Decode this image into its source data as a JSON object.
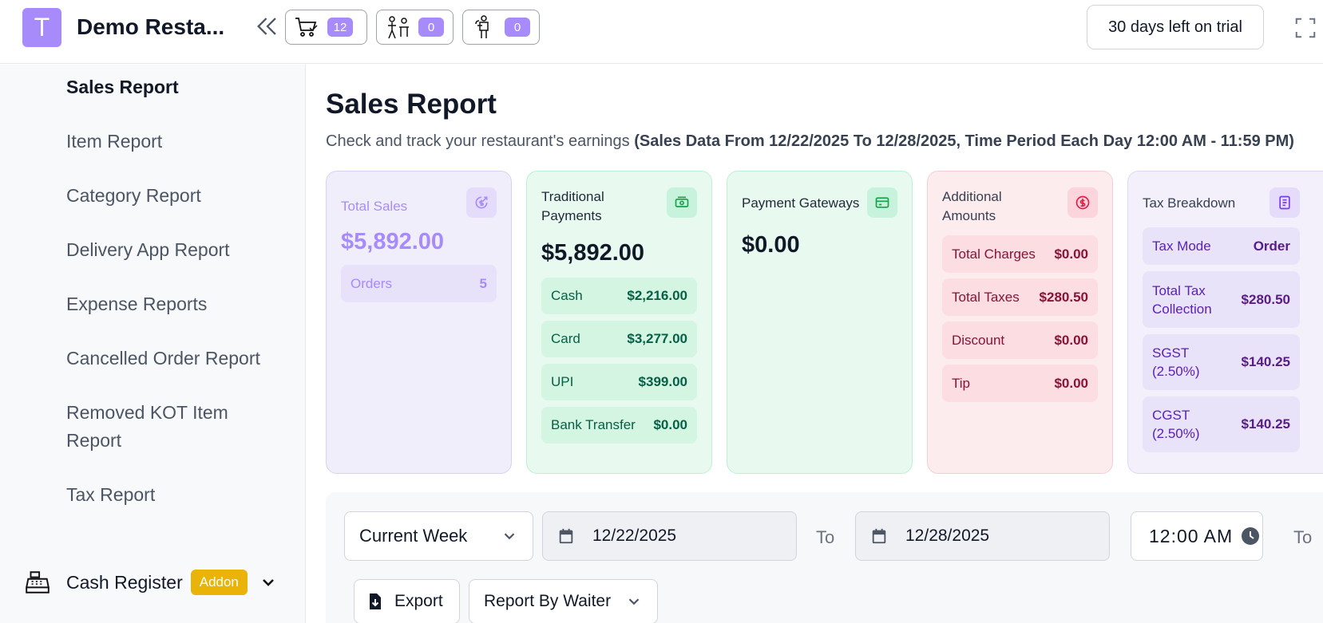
{
  "header": {
    "logo_letter": "T",
    "brand": "Demo Resta...",
    "badges": [
      {
        "icon": "shopping-cart-icon",
        "count": "12"
      },
      {
        "icon": "table-service-icon",
        "count": "0"
      },
      {
        "icon": "waiter-icon",
        "count": "0"
      }
    ],
    "trial_label": "30 days left on trial"
  },
  "sidebar": {
    "items": [
      {
        "label": "Sales Report",
        "active": true
      },
      {
        "label": "Item Report"
      },
      {
        "label": "Category Report"
      },
      {
        "label": "Delivery App Report"
      },
      {
        "label": "Expense Reports"
      },
      {
        "label": "Cancelled Order Report"
      },
      {
        "label": "Removed KOT Item"
      },
      {
        "label": "Report"
      },
      {
        "label": "Tax Report"
      }
    ],
    "cash_register": {
      "label": "Cash Register",
      "badge": "Addon"
    }
  },
  "main": {
    "title": "Sales Report",
    "subtitle_prefix": "Check and track your restaurant's earnings ",
    "subtitle_bold": "(Sales Data From 12/22/2025 To 12/28/2025, Time Period Each Day 12:00 AM - 11:59 PM)"
  },
  "cards": {
    "total_sales": {
      "title": "Total Sales",
      "amount": "$5,892.00",
      "rows": [
        {
          "label": "Orders",
          "value": "5"
        }
      ]
    },
    "traditional": {
      "title": "Traditional Payments",
      "amount": "$5,892.00",
      "rows": [
        {
          "label": "Cash",
          "value": "$2,216.00"
        },
        {
          "label": "Card",
          "value": "$3,277.00"
        },
        {
          "label": "UPI",
          "value": "$399.00"
        },
        {
          "label": "Bank Transfer",
          "value": "$0.00"
        }
      ]
    },
    "gateways": {
      "title": "Payment Gateways",
      "amount": "$0.00"
    },
    "additional": {
      "title": "Additional Amounts",
      "rows": [
        {
          "label": "Total Charges",
          "value": "$0.00"
        },
        {
          "label": "Total Taxes",
          "value": "$280.50"
        },
        {
          "label": "Discount",
          "value": "$0.00"
        },
        {
          "label": "Tip",
          "value": "$0.00"
        }
      ]
    },
    "tax": {
      "title": "Tax Breakdown",
      "rows": [
        {
          "label": "Tax Mode",
          "value": "Order"
        },
        {
          "label": "Total Tax Collection",
          "value": "$280.50"
        },
        {
          "label": "SGST (2.50%)",
          "value": "$140.25"
        },
        {
          "label": "CGST (2.50%)",
          "value": "$140.25"
        }
      ]
    }
  },
  "filters": {
    "period": "Current Week",
    "from_date": "12/22/2025",
    "to_label": "To",
    "to_date": "12/28/2025",
    "start_time": "12:00 AM",
    "export_label": "Export",
    "report_by": "Report By Waiter"
  }
}
